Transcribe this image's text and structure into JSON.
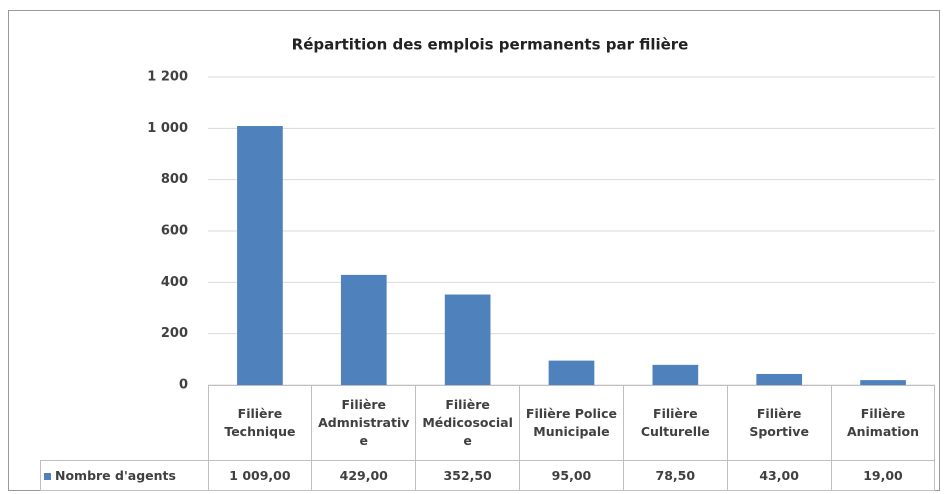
{
  "chart_data": {
    "type": "bar",
    "title": "Répartition des emplois permanents par filière",
    "categories": [
      "Filière Technique",
      "Filière Admnistrative",
      "Filière Médicosociale",
      "Filière Police Municipale",
      "Filière Culturelle",
      "Filière Sportive",
      "Filière Animation"
    ],
    "series": [
      {
        "name": "Nombre d'agents",
        "color": "#4f81bd",
        "values": [
          1009,
          429,
          352.5,
          95,
          78.5,
          43,
          19
        ],
        "value_labels": [
          "1 009,00",
          "429,00",
          "352,50",
          "95,00",
          "78,50",
          "43,00",
          "19,00"
        ]
      }
    ],
    "ylim": [
      0,
      1200
    ],
    "yticks": [
      0,
      200,
      400,
      600,
      800,
      {
        "value": 1000,
        "label": "1 000"
      },
      {
        "value": 1200,
        "label": "1 200"
      }
    ],
    "grid": true
  }
}
